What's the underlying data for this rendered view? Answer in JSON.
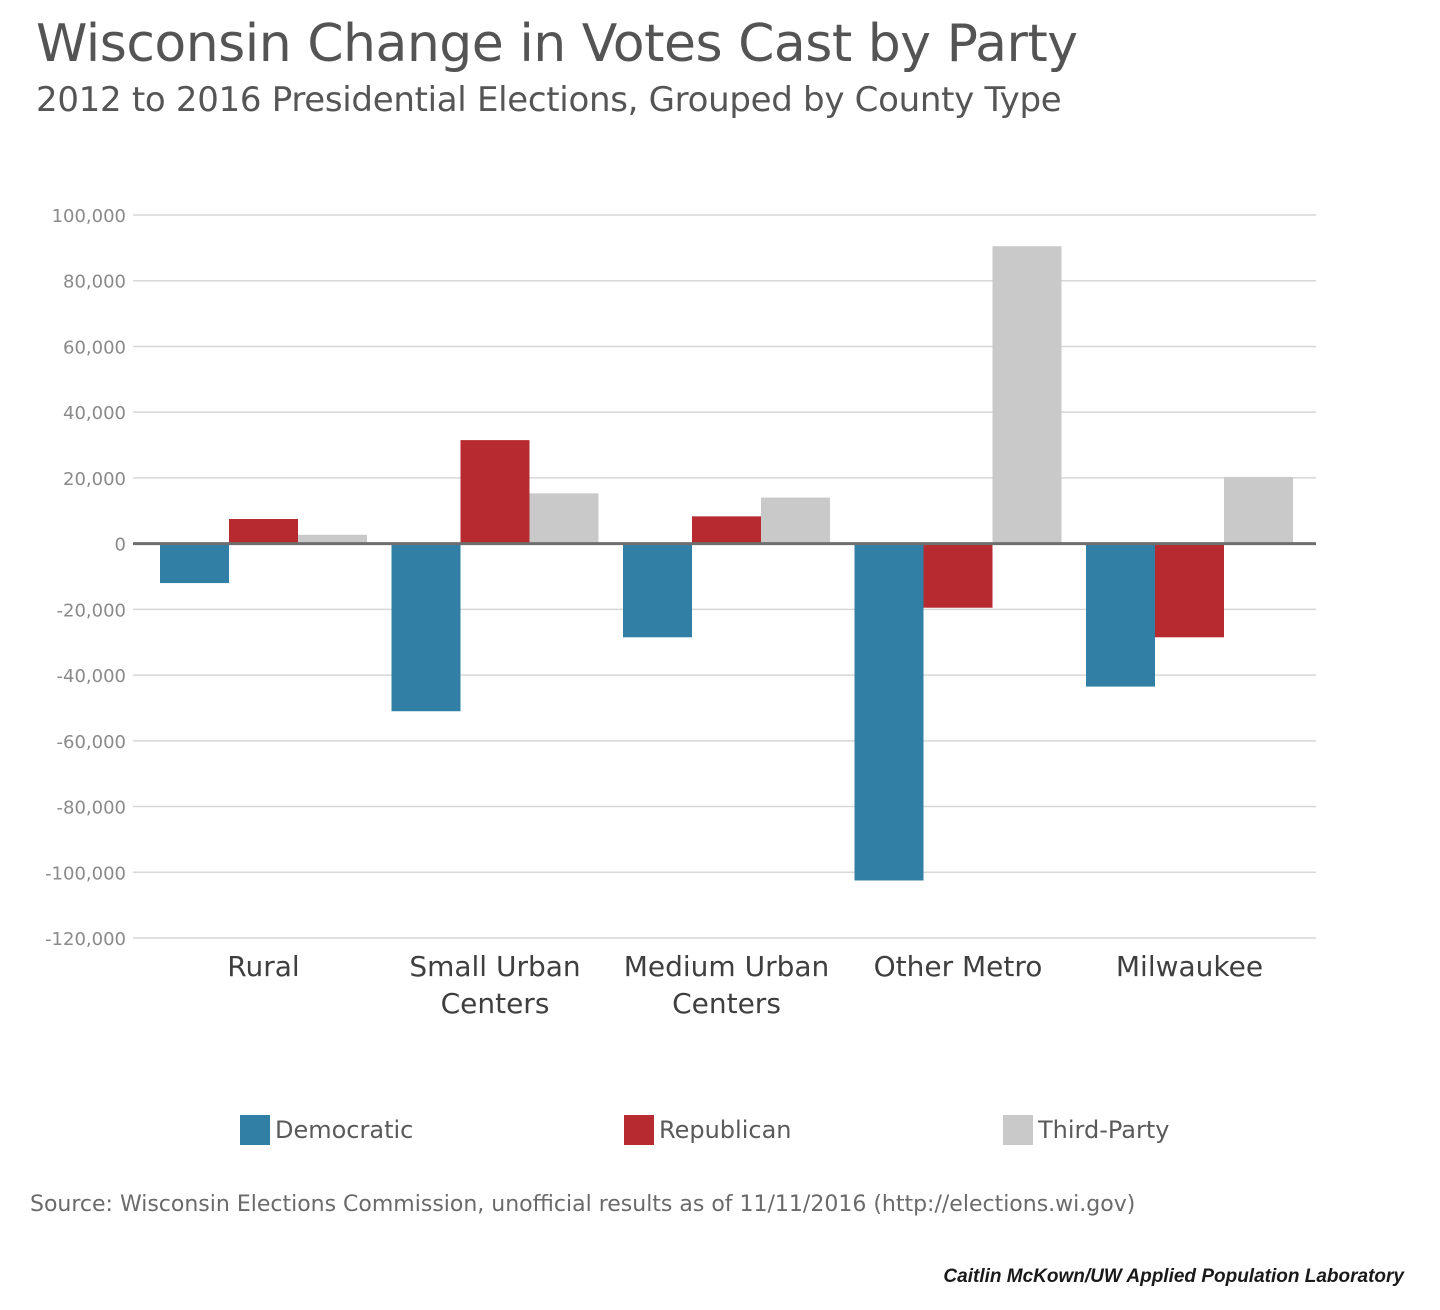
{
  "title": "Wisconsin Change in Votes Cast by Party",
  "subtitle": "2012 to 2016 Presidential Elections, Grouped by County Type",
  "source": "Source: Wisconsin Elections Commission, unofficial results as of 11/11/2016 (http://elections.wi.gov)",
  "credit": "Caitlin McKown/UW Applied Population Laboratory",
  "colors": {
    "democratic": "#327fa5",
    "republican": "#b72a2f",
    "third_party": "#c9c9c9",
    "grid": "#d7d7d7",
    "zero_line": "#6e6e6e"
  },
  "chart_data": {
    "type": "bar",
    "title": "Wisconsin Change in Votes Cast by Party",
    "subtitle": "2012 to 2016 Presidential Elections, Grouped by County Type",
    "categories": [
      [
        "Rural"
      ],
      [
        "Small Urban",
        "Centers"
      ],
      [
        "Medium Urban",
        "Centers"
      ],
      [
        "Other Metro"
      ],
      [
        "Milwaukee"
      ]
    ],
    "series": [
      {
        "name": "Democratic",
        "color": "#327fa5",
        "values": [
          -12000,
          -51000,
          -28500,
          -102500,
          -43500
        ]
      },
      {
        "name": "Republican",
        "color": "#b72a2f",
        "values": [
          7500,
          31500,
          8300,
          -19500,
          -28500
        ]
      },
      {
        "name": "Third-Party",
        "color": "#c9c9c9",
        "values": [
          2700,
          15300,
          14000,
          90500,
          20300
        ]
      }
    ],
    "ylim": [
      -120000,
      100000
    ],
    "yticks": [
      100000,
      80000,
      60000,
      40000,
      20000,
      0,
      -20000,
      -40000,
      -60000,
      -80000,
      -100000,
      -120000
    ],
    "ytick_labels": [
      "100,000",
      "80,000",
      "60,000",
      "40,000",
      "20,000",
      "0",
      "-20,000",
      "-40,000",
      "-60,000",
      "-80,000",
      "-100,000",
      "-120,000"
    ],
    "xlabel": "",
    "ylabel": "",
    "grid": true,
    "legend_position": "bottom"
  }
}
